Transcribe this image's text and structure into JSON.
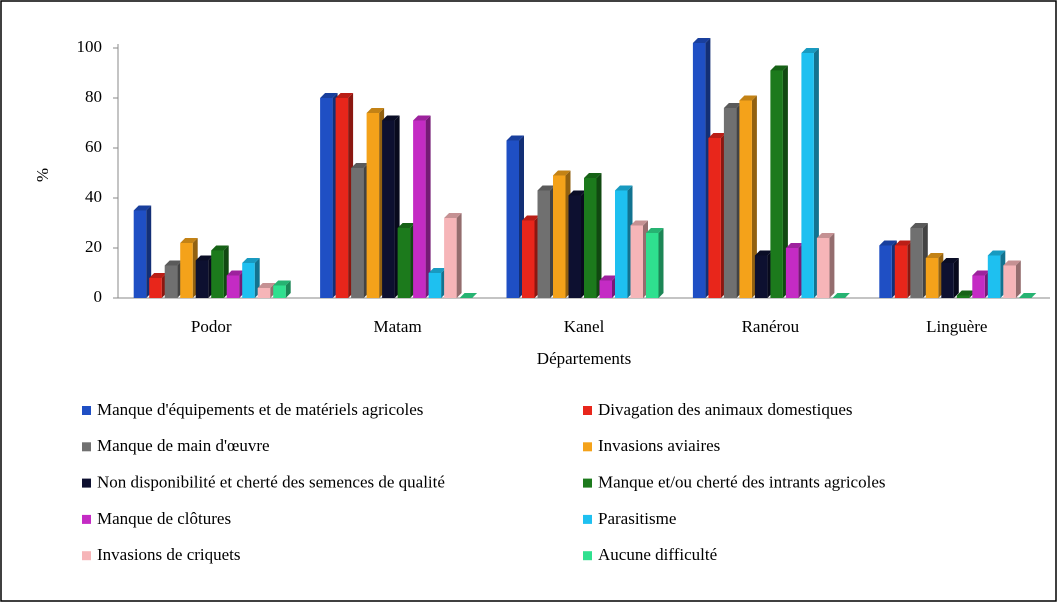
{
  "chart_data": {
    "type": "bar",
    "x_label": "Départements",
    "y_label": "%",
    "categories": [
      "Podor",
      "Matam",
      "Kanel",
      "Ranérou",
      "Linguère"
    ],
    "series": [
      {
        "name": "Manque d'équipements et de matériels agricoles",
        "color": "#1f4fc4",
        "values": [
          35,
          80,
          63,
          102,
          21
        ]
      },
      {
        "name": "Divagation des animaux domestiques",
        "color": "#e8261b",
        "values": [
          8,
          80,
          31,
          64,
          21
        ]
      },
      {
        "name": "Manque de main d'œuvre",
        "color": "#707070",
        "values": [
          13,
          52,
          43,
          76,
          28
        ]
      },
      {
        "name": "Invasions aviaires",
        "color": "#f4a21a",
        "values": [
          22,
          74,
          49,
          79,
          16
        ]
      },
      {
        "name": "Non disponibilité et cherté des semences de qualité",
        "color": "#0d1030",
        "values": [
          15,
          71,
          41,
          17,
          14
        ]
      },
      {
        "name": "Manque et/ou cherté des intrants agricoles",
        "color": "#1c7a1c",
        "values": [
          19,
          28,
          48,
          91,
          1
        ]
      },
      {
        "name": "Manque de clôtures",
        "color": "#c42bc4",
        "values": [
          9,
          71,
          7,
          20,
          9
        ]
      },
      {
        "name": "Parasitisme",
        "color": "#1ec0f0",
        "values": [
          14,
          10,
          43,
          98,
          17
        ]
      },
      {
        "name": "Invasions de criquets",
        "color": "#f6b5b8",
        "values": [
          4,
          32,
          29,
          24,
          13
        ]
      },
      {
        "name": "Aucune difficulté",
        "color": "#2fe08f",
        "values": [
          5,
          0,
          26,
          0,
          0
        ]
      }
    ],
    "ylim": [
      0,
      100
    ],
    "yticks": [
      0,
      20,
      40,
      60,
      80,
      100
    ],
    "grid": false
  }
}
